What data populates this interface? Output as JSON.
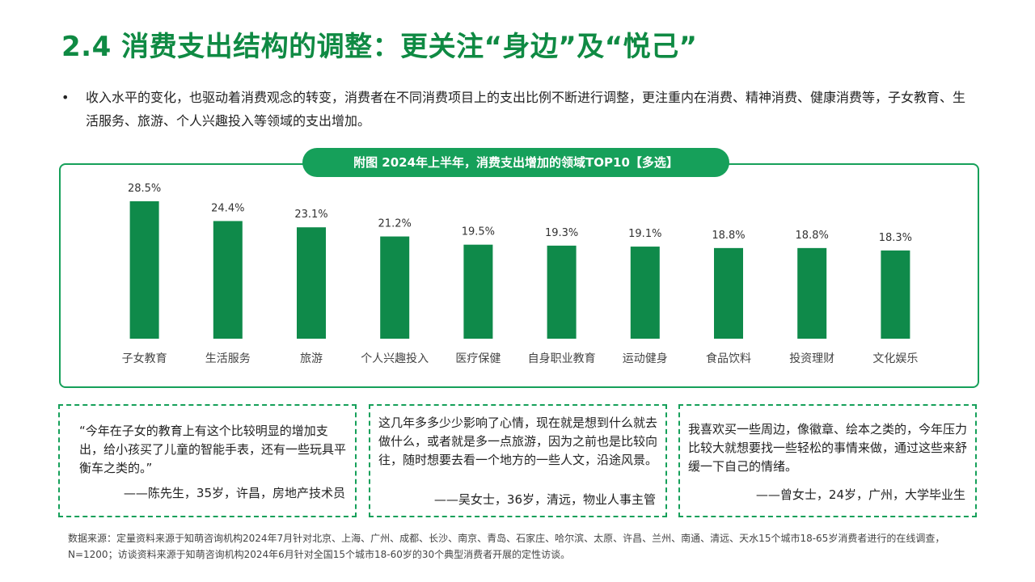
{
  "title": "2.4 消费支出结构的调整：更关注“身边”及“悦己”",
  "bullet": {
    "marker": "•",
    "text": "收入水平的变化，也驱动着消费观念的转变，消费者在不同消费项目上的支出比例不断进行调整，更注重内在消费、精神消费、健康消费等，子女教育、生活服务、旅游、个人兴趣投入等领域的支出增加。"
  },
  "chart_title": "附图 2024年上半年，消费支出增加的领域TOP10【多选】",
  "chart_data": {
    "type": "bar",
    "title": "附图 2024年上半年，消费支出增加的领域TOP10【多选】",
    "categories": [
      "子女教育",
      "生活服务",
      "旅游",
      "个人兴趣投入",
      "医疗保健",
      "自身职业教育",
      "运动健身",
      "食品饮料",
      "投资理财",
      "文化娱乐"
    ],
    "values": [
      28.5,
      24.4,
      23.1,
      21.2,
      19.5,
      19.3,
      19.1,
      18.8,
      18.8,
      18.3
    ],
    "labels": [
      "28.5%",
      "24.4%",
      "23.1%",
      "21.2%",
      "19.5%",
      "19.3%",
      "19.1%",
      "18.8%",
      "18.8%",
      "18.3%"
    ],
    "unit": "%",
    "bar_color": "#0f8a4a",
    "grid": false,
    "legend": "none"
  },
  "quotes": [
    {
      "text": "“今年在子女的教育上有这个比较明显的增加支出，给小孩买了儿童的智能手表，还有一些玩具平衡车之类的。”",
      "signature": "——陈先生，35岁，许昌，房地产技术员"
    },
    {
      "text": "这几年多多少少影响了心情，现在就是想到什么就去做什么，或者就是多一点旅游，因为之前也是比较向往，随时想要去看一个地方的一些人文，沿途风景。",
      "signature": "——吴女士，36岁，清远，物业人事主管"
    },
    {
      "text": "我喜欢买一些周边，像徽章、绘本之类的，今年压力比较大就想要找一些轻松的事情来做，通过这些来舒缓一下自己的情绪。",
      "signature": "——曾女士，24岁，广州，大学毕业生"
    }
  ],
  "source": "数据来源：定量资料来源于知萌咨询机构2024年7月针对北京、上海、广州、成都、长沙、南京、青岛、石家庄、哈尔滨、太原、许昌、兰州、南通、清远、天水15个城市18-65岁消费者进行的在线调查，N=1200；访谈资料来源于知萌咨询机构2024年6月针对全国15个城市18-60岁的30个典型消费者开展的定性访谈。",
  "colors": {
    "accent": "#0f8a43",
    "border": "#16a05a"
  }
}
